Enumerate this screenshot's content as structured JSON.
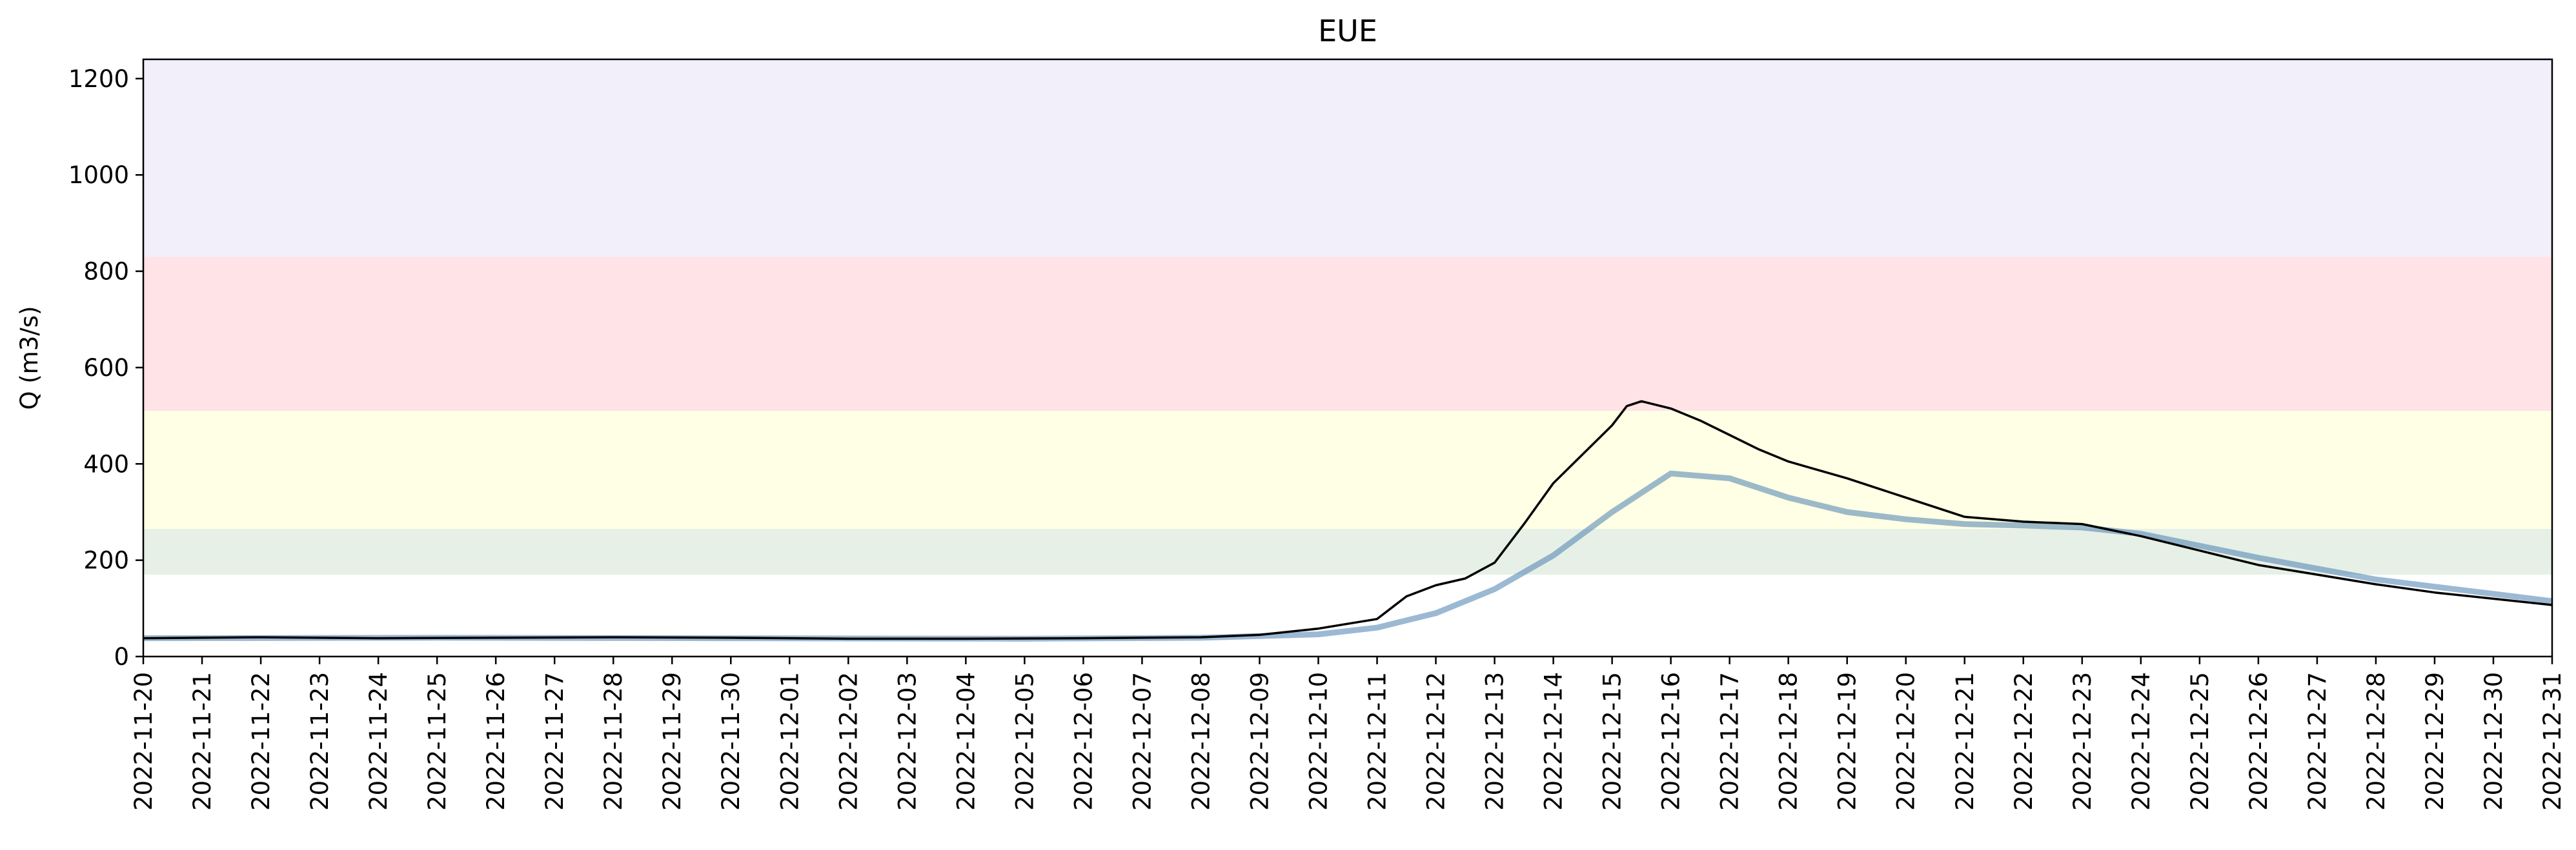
{
  "chart_data": {
    "type": "line",
    "title": "EUE",
    "xlabel": "",
    "ylabel": "Q (m3/s)",
    "ylim": [
      0,
      1240
    ],
    "yticks": [
      0,
      200,
      400,
      600,
      800,
      1000,
      1200
    ],
    "x_start": "2022-11-20",
    "x_end": "2022-12-31",
    "xticks": [
      "2022-11-20",
      "2022-11-21",
      "2022-11-22",
      "2022-11-23",
      "2022-11-24",
      "2022-11-25",
      "2022-11-26",
      "2022-11-27",
      "2022-11-28",
      "2022-11-29",
      "2022-11-30",
      "2022-12-01",
      "2022-12-02",
      "2022-12-03",
      "2022-12-04",
      "2022-12-05",
      "2022-12-06",
      "2022-12-07",
      "2022-12-08",
      "2022-12-09",
      "2022-12-10",
      "2022-12-11",
      "2022-12-12",
      "2022-12-13",
      "2022-12-14",
      "2022-12-15",
      "2022-12-16",
      "2022-12-17",
      "2022-12-18",
      "2022-12-19",
      "2022-12-20",
      "2022-12-21",
      "2022-12-22",
      "2022-12-23",
      "2022-12-24",
      "2022-12-25",
      "2022-12-26",
      "2022-12-27",
      "2022-12-28",
      "2022-12-29",
      "2022-12-30",
      "2022-12-31"
    ],
    "grid": false,
    "threshold_bands": [
      {
        "from": 170,
        "to": 265,
        "color": "#e6f0e6"
      },
      {
        "from": 265,
        "to": 510,
        "color": "#ffffe5"
      },
      {
        "from": 510,
        "to": 830,
        "color": "#ffe3e6"
      },
      {
        "from": 830,
        "to": 1240,
        "color": "#f2eefa"
      }
    ],
    "series": [
      {
        "color": "#000000",
        "x": [
          "2022-11-20",
          "2022-11-22",
          "2022-11-24",
          "2022-11-26",
          "2022-11-28",
          "2022-11-30",
          "2022-12-02",
          "2022-12-04",
          "2022-12-06",
          "2022-12-08",
          "2022-12-09",
          "2022-12-10",
          "2022-12-11",
          "2022-12-11 12:00",
          "2022-12-12",
          "2022-12-12 12:00",
          "2022-12-13",
          "2022-12-13 12:00",
          "2022-12-14",
          "2022-12-14 12:00",
          "2022-12-15",
          "2022-12-15 06:00",
          "2022-12-15 12:00",
          "2022-12-16",
          "2022-12-16 12:00",
          "2022-12-17",
          "2022-12-17 12:00",
          "2022-12-18",
          "2022-12-19",
          "2022-12-20",
          "2022-12-21",
          "2022-12-22",
          "2022-12-23",
          "2022-12-24",
          "2022-12-25",
          "2022-12-26",
          "2022-12-27",
          "2022-12-28",
          "2022-12-29",
          "2022-12-30",
          "2022-12-31"
        ],
        "values": [
          38,
          40,
          38,
          39,
          40,
          39,
          37,
          37,
          38,
          40,
          45,
          58,
          78,
          125,
          148,
          162,
          195,
          275,
          360,
          420,
          480,
          520,
          530,
          515,
          490,
          460,
          430,
          405,
          370,
          330,
          290,
          280,
          275,
          250,
          220,
          190,
          170,
          150,
          133,
          120,
          107
        ]
      },
      {
        "color": "#4a7fb0",
        "x": [
          "2022-11-20",
          "2022-11-25",
          "2022-11-30",
          "2022-12-05",
          "2022-12-08",
          "2022-12-10",
          "2022-12-11",
          "2022-12-12",
          "2022-12-13",
          "2022-12-14",
          "2022-12-15",
          "2022-12-16",
          "2022-12-17",
          "2022-12-18",
          "2022-12-19",
          "2022-12-20",
          "2022-12-21",
          "2022-12-22",
          "2022-12-23",
          "2022-12-24",
          "2022-12-26",
          "2022-12-28",
          "2022-12-30",
          "2022-12-31"
        ],
        "values": [
          38,
          39,
          38,
          37,
          39,
          46,
          60,
          90,
          140,
          210,
          300,
          380,
          370,
          330,
          300,
          285,
          275,
          272,
          268,
          255,
          205,
          160,
          130,
          115
        ]
      }
    ]
  }
}
